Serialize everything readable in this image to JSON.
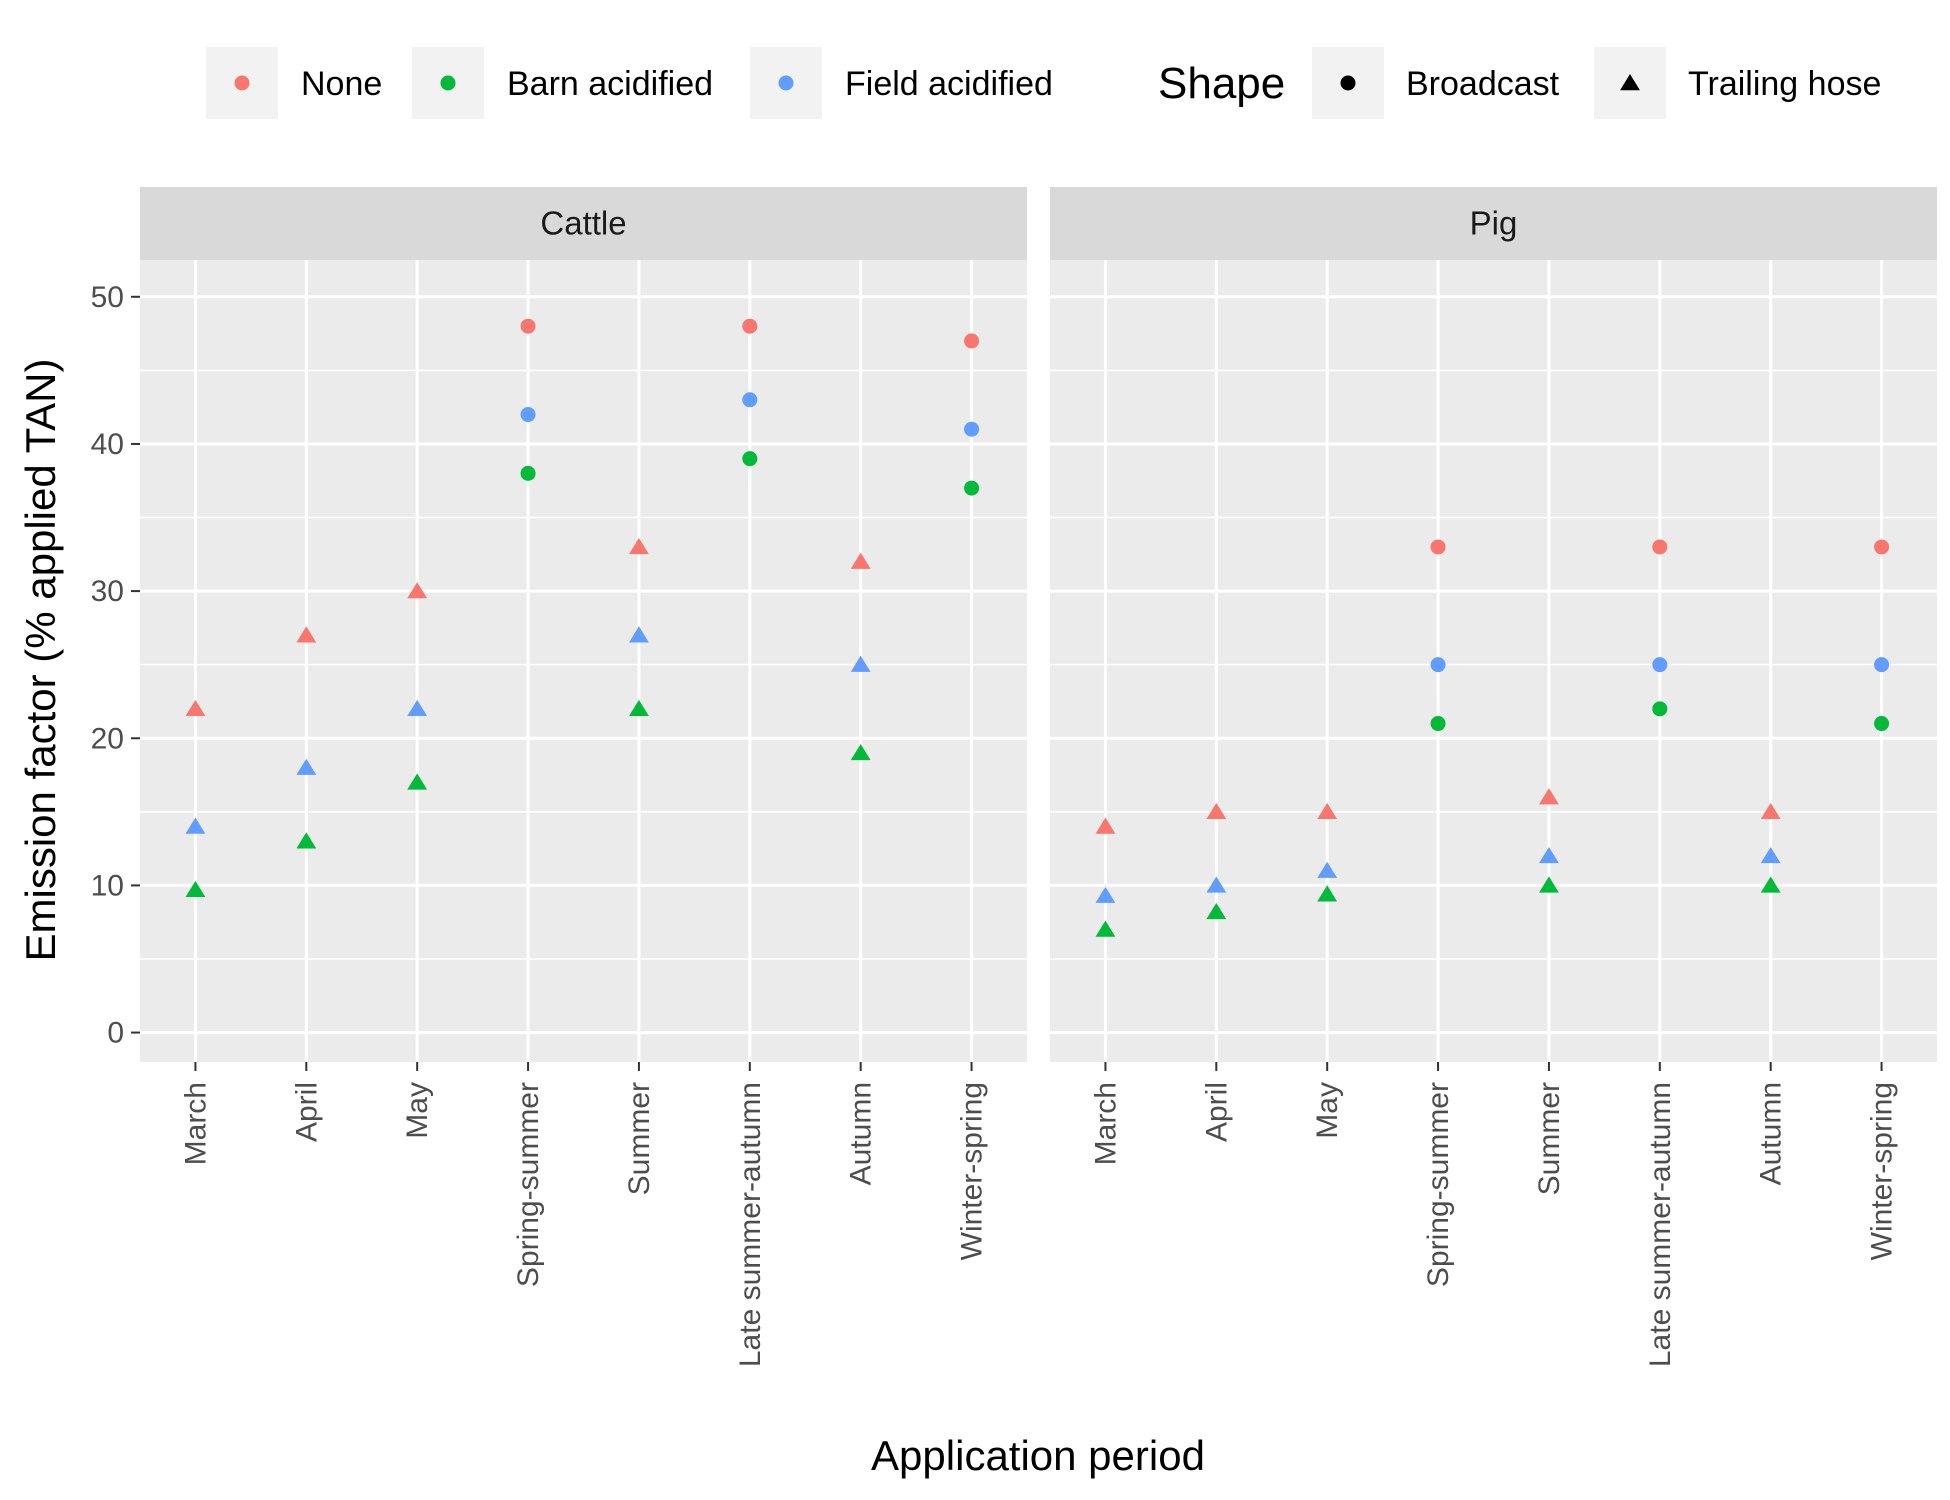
{
  "chart_data": {
    "type": "scatter",
    "xlabel": "Application period",
    "ylabel": "Emission factor (% applied TAN)",
    "ylim": [
      -2,
      52.5
    ],
    "yticks": [
      0,
      10,
      20,
      30,
      40,
      50
    ],
    "grid": true,
    "legend_position": "top",
    "categories": [
      "March",
      "April",
      "May",
      "Spring-summer",
      "Summer",
      "Late summer-autumn",
      "Autumn",
      "Winter-spring"
    ],
    "colors": {
      "None": "#F8766D",
      "Barn acidified": "#00BA38",
      "Field acidified": "#619CFF"
    },
    "legend": {
      "color_items": [
        "None",
        "Barn acidified",
        "Field acidified"
      ],
      "shape_title": "Shape",
      "shape_items": [
        {
          "label": "Broadcast",
          "shape": "circle"
        },
        {
          "label": "Trailing hose",
          "shape": "triangle"
        }
      ]
    },
    "panels": [
      {
        "name": "Cattle",
        "series": [
          {
            "name": "None",
            "values": [
              22,
              27,
              30,
              48,
              33,
              48,
              32,
              47
            ],
            "shapes": [
              "Trailing hose",
              "Trailing hose",
              "Trailing hose",
              "Broadcast",
              "Trailing hose",
              "Broadcast",
              "Trailing hose",
              "Broadcast"
            ]
          },
          {
            "name": "Field acidified",
            "values": [
              14,
              18,
              22,
              42,
              27,
              43,
              25,
              41
            ],
            "shapes": [
              "Trailing hose",
              "Trailing hose",
              "Trailing hose",
              "Broadcast",
              "Trailing hose",
              "Broadcast",
              "Trailing hose",
              "Broadcast"
            ]
          },
          {
            "name": "Barn acidified",
            "values": [
              9.7,
              13,
              17,
              38,
              22,
              39,
              19,
              37
            ],
            "shapes": [
              "Trailing hose",
              "Trailing hose",
              "Trailing hose",
              "Broadcast",
              "Trailing hose",
              "Broadcast",
              "Trailing hose",
              "Broadcast"
            ]
          }
        ]
      },
      {
        "name": "Pig",
        "series": [
          {
            "name": "None",
            "values": [
              14,
              15,
              15,
              33,
              16,
              33,
              15,
              33
            ],
            "shapes": [
              "Trailing hose",
              "Trailing hose",
              "Trailing hose",
              "Broadcast",
              "Trailing hose",
              "Broadcast",
              "Trailing hose",
              "Broadcast"
            ]
          },
          {
            "name": "Field acidified",
            "values": [
              9.3,
              10,
              11,
              25,
              12,
              25,
              12,
              25
            ],
            "shapes": [
              "Trailing hose",
              "Trailing hose",
              "Trailing hose",
              "Broadcast",
              "Trailing hose",
              "Broadcast",
              "Trailing hose",
              "Broadcast"
            ]
          },
          {
            "name": "Barn acidified",
            "values": [
              7,
              8.2,
              9.4,
              21,
              10,
              22,
              10,
              21
            ],
            "shapes": [
              "Trailing hose",
              "Trailing hose",
              "Trailing hose",
              "Broadcast",
              "Trailing hose",
              "Broadcast",
              "Trailing hose",
              "Broadcast"
            ]
          }
        ]
      }
    ]
  }
}
